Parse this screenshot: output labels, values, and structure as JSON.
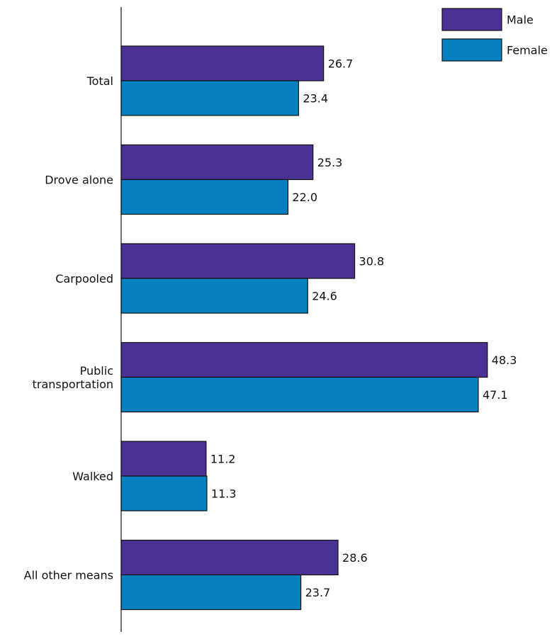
{
  "chart_data": {
    "type": "bar",
    "orientation": "horizontal",
    "categories": [
      [
        "Total"
      ],
      [
        "Drove alone"
      ],
      [
        "Carpooled"
      ],
      [
        "Public",
        "transportation"
      ],
      [
        "Walked"
      ],
      [
        "All other means"
      ]
    ],
    "series": [
      {
        "name": "Male",
        "color": "#4b3193",
        "values": [
          26.7,
          25.3,
          30.8,
          48.3,
          11.2,
          28.6
        ],
        "labels": [
          "26.7",
          "25.3",
          "30.8",
          "48.3",
          "11.2",
          "28.6"
        ]
      },
      {
        "name": "Female",
        "color": "#0780bf",
        "values": [
          23.4,
          22.0,
          24.6,
          47.1,
          11.3,
          23.7
        ],
        "labels": [
          "23.4",
          "22.0",
          "24.6",
          "47.1",
          "11.3",
          "23.7"
        ]
      }
    ],
    "xlim": [
      0,
      50
    ],
    "legend_position": "top-right",
    "grid": false,
    "title": "",
    "xlabel": "",
    "ylabel": ""
  }
}
